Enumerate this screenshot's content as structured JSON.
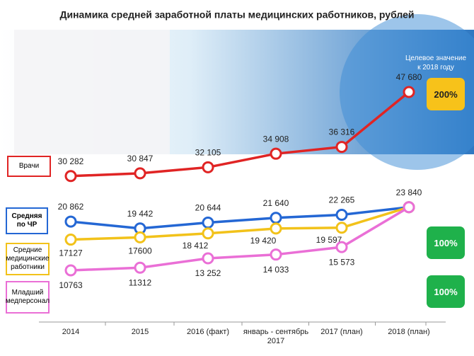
{
  "chart_data": {
    "type": "line",
    "title": "Динамика средней заработной платы медицинских работников, рублей",
    "categories": [
      "2014",
      "2015",
      "2016 (факт)",
      "январь - сентябрь 2017",
      "2017 (план)",
      "2018 (план)"
    ],
    "series": [
      {
        "name": "Врачи",
        "color": "#e02424",
        "values": [
          30282,
          30847,
          32105,
          34908,
          36316,
          47680
        ],
        "value_labels": [
          "30 282",
          "30 847",
          "32 105",
          "34 908",
          "36 316",
          "47 680"
        ]
      },
      {
        "name": "Средняя по ЧР",
        "color": "#2467d4",
        "values": [
          20862,
          19442,
          20644,
          21640,
          22265,
          23840
        ],
        "value_labels": [
          "20 862",
          "19 442",
          "20 644",
          "21 640",
          "22 265",
          "23 840"
        ]
      },
      {
        "name": "Средние медицинские работники",
        "color": "#f2c21a",
        "values": [
          17127,
          17600,
          18412,
          19420,
          19597,
          23840
        ],
        "value_labels": [
          "17127",
          "17600",
          "18 412",
          "19 420",
          "19 597",
          null
        ]
      },
      {
        "name": "Младший медперсонал",
        "color": "#ea6fd6",
        "values": [
          10763,
          11312,
          13252,
          14033,
          15573,
          23840
        ],
        "value_labels": [
          "10763",
          "11312",
          "13 252",
          "14 033",
          "15 573",
          null
        ]
      }
    ],
    "annotations": [
      {
        "text": "Целевое значение к 2018 году"
      },
      {
        "text": "200%",
        "color": "#f7c21a"
      },
      {
        "text": "100%",
        "color": "#1fb14b"
      },
      {
        "text": "100%",
        "color": "#1fb14b"
      }
    ]
  }
}
